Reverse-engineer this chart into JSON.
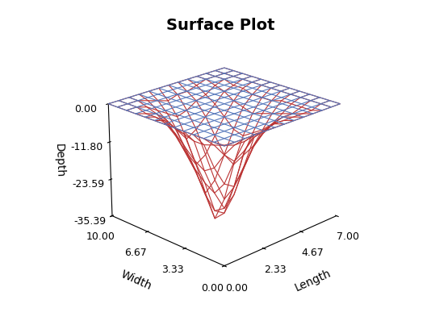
{
  "title": "Surface Plot",
  "xlabel": "Length",
  "ylabel": "Width",
  "zlabel": "Depth",
  "xlim": [
    0.0,
    7.0
  ],
  "ylim": [
    0.0,
    10.0
  ],
  "zlim": [
    -35.39,
    0.0
  ],
  "xticks": [
    7.0,
    4.67,
    2.33,
    0.0
  ],
  "yticks": [
    0.0,
    3.33,
    6.67,
    10.0
  ],
  "zticks": [
    -35.39,
    -23.59,
    -11.8,
    0.0
  ],
  "xticklabels": [
    "7.00",
    "4.67",
    "2.33",
    "0.00"
  ],
  "yticklabels": [
    "0.00",
    "3.33",
    "6.67",
    "10.00"
  ],
  "zticklabels": [
    "-35.39",
    "-23.59",
    "-11.80",
    "0.00"
  ],
  "line_color_above": "#5577BB",
  "line_color_below": "#BB3333",
  "background_color": "#FFFFFF",
  "title_fontsize": 14,
  "label_fontsize": 10,
  "tick_fontsize": 9,
  "elev": 22,
  "azim": -135,
  "nx": 13,
  "ny": 13,
  "lake_data": [
    [
      0,
      0,
      0,
      0,
      0,
      0,
      0,
      0,
      0,
      0,
      0,
      0,
      0
    ],
    [
      0,
      -2,
      -3,
      -3,
      -2,
      -2,
      -1,
      -1,
      -1,
      -1,
      -1,
      0,
      0
    ],
    [
      0,
      -3,
      -7,
      -10,
      -8,
      -5,
      -4,
      -3,
      -2,
      -2,
      -1,
      0,
      0
    ],
    [
      0,
      -4,
      -12,
      -18,
      -20,
      -15,
      -10,
      -7,
      -5,
      -3,
      -1,
      0,
      0
    ],
    [
      0,
      -4,
      -14,
      -22,
      -28,
      -25,
      -18,
      -12,
      -8,
      -4,
      -1,
      0,
      0
    ],
    [
      0,
      -3,
      -12,
      -20,
      -30,
      -32,
      -25,
      -16,
      -10,
      -5,
      -2,
      0,
      0
    ],
    [
      0,
      -2,
      -9,
      -17,
      -26,
      -35,
      -30,
      -20,
      -12,
      -6,
      -2,
      0,
      0
    ],
    [
      0,
      -1,
      -6,
      -13,
      -20,
      -28,
      -25,
      -18,
      -11,
      -5,
      -2,
      0,
      0
    ],
    [
      0,
      -1,
      -4,
      -9,
      -15,
      -20,
      -18,
      -13,
      -8,
      -4,
      -1,
      0,
      0
    ],
    [
      0,
      -1,
      -2,
      -5,
      -9,
      -13,
      -11,
      -8,
      -5,
      -2,
      -1,
      0,
      0
    ],
    [
      0,
      0,
      -1,
      -3,
      -5,
      -7,
      -6,
      -4,
      -3,
      -1,
      0,
      0,
      0
    ],
    [
      0,
      0,
      0,
      -1,
      -2,
      -3,
      -2,
      -2,
      -1,
      0,
      0,
      0,
      0
    ],
    [
      0,
      0,
      0,
      0,
      0,
      0,
      0,
      0,
      0,
      0,
      0,
      0,
      0
    ]
  ]
}
